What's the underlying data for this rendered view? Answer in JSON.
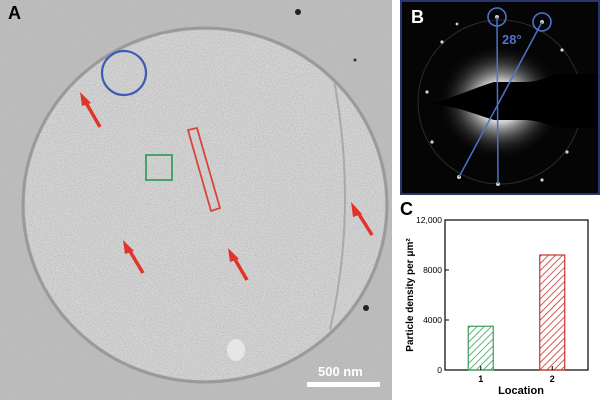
{
  "figure": {
    "panel_a": {
      "label": "A",
      "scale_bar_label": "500 nm"
    },
    "panel_b": {
      "label": "B",
      "angle_label": "28°"
    },
    "panel_c": {
      "label": "C"
    },
    "colors": {
      "circle_marker": "#3f5cb5",
      "arrow": "#e0342a",
      "green_box": "#3aa05a",
      "red_box": "#d9453a",
      "bar_location_1": "#3aa05a",
      "bar_location_2": "#c8322c"
    }
  },
  "chart_data": {
    "type": "bar",
    "categories": [
      "1",
      "2"
    ],
    "values": [
      3500,
      9200
    ],
    "xlabel": "Location",
    "ylabel": "Particle density per μm²",
    "ylim": [
      0,
      12000
    ],
    "yticks": [
      "0",
      "4000",
      "8000",
      "12,000"
    ],
    "hatch": "diagonal",
    "grid": false,
    "legend": "none"
  }
}
